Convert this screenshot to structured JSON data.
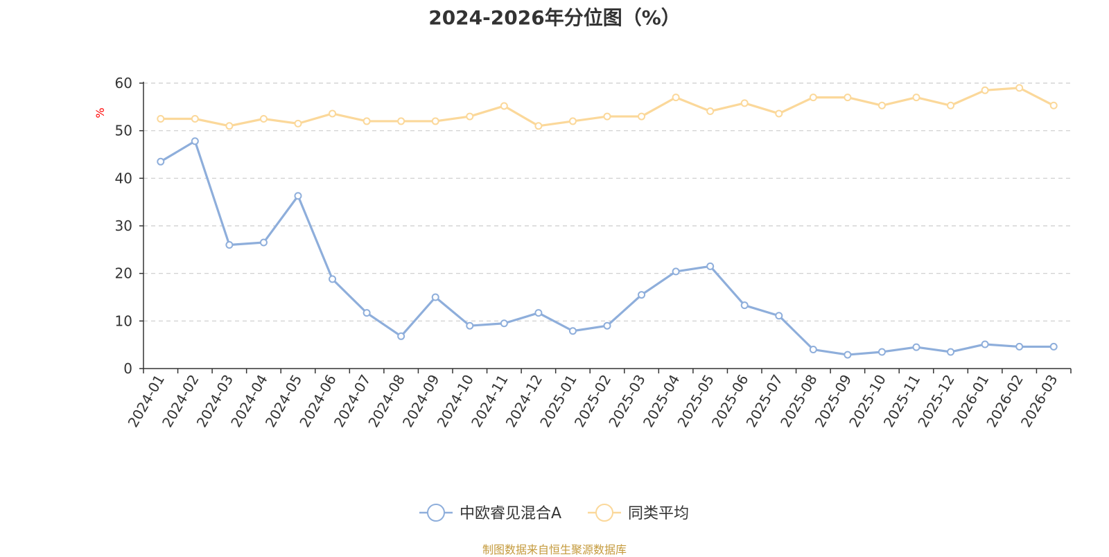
{
  "chart_data": {
    "type": "line",
    "title": "2024-2026年分位图（%）",
    "ylabel": "%",
    "xlabel": "",
    "ylim": [
      0,
      60
    ],
    "yticks": [
      0,
      10,
      20,
      30,
      40,
      50,
      60
    ],
    "grid": true,
    "legend_position": "bottom-center",
    "categories": [
      "2024-01",
      "2024-02",
      "2024-03",
      "2024-04",
      "2024-05",
      "2024-06",
      "2024-07",
      "2024-08",
      "2024-09",
      "2024-10",
      "2024-11",
      "2024-12",
      "2025-01",
      "2025-02",
      "2025-03",
      "2025-04",
      "2025-05",
      "2025-06",
      "2025-07",
      "2025-08",
      "2025-09",
      "2025-10",
      "2025-11",
      "2025-12",
      "2026-01",
      "2026-02",
      "2026-03"
    ],
    "series": [
      {
        "name": "中欧睿见混合A",
        "color": "#8eaedb",
        "values": [
          43.5,
          47.8,
          26.0,
          26.5,
          36.3,
          18.8,
          11.7,
          6.8,
          15.0,
          9.0,
          9.5,
          11.7,
          7.9,
          9.0,
          15.5,
          20.4,
          21.5,
          13.3,
          11.1,
          4.0,
          2.9,
          3.5,
          4.5,
          3.5,
          5.1,
          4.6,
          4.6
        ]
      },
      {
        "name": "同类平均",
        "color": "#fbd89a",
        "values": [
          52.5,
          52.5,
          51.0,
          52.5,
          51.5,
          53.6,
          52.0,
          52.0,
          52.0,
          53.0,
          55.2,
          51.0,
          52.0,
          53.0,
          53.0,
          57.0,
          54.1,
          55.8,
          53.6,
          57.0,
          57.0,
          55.3,
          57.0,
          55.3,
          58.5,
          59.0,
          55.3
        ]
      }
    ]
  },
  "footer": "制图数据来自恒生聚源数据库"
}
